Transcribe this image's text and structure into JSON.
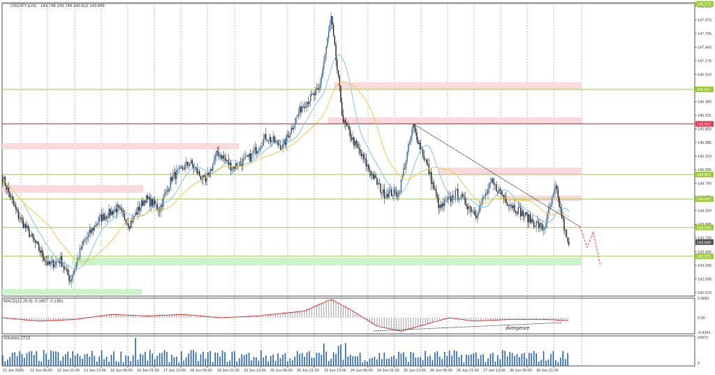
{
  "window": {
    "symbol_line": "USDJPY.a,H1",
    "ohlc": "143.748 143.749 143.622 143.649"
  },
  "colors": {
    "up_candle": "#2f5f8f",
    "down_candle": "#1a1a1a",
    "ma_fast": "#7cc4e8",
    "ma_slow": "#f5c842",
    "green_line": "#9acd32",
    "red_line": "#e3394f",
    "pink_zone": "#fadadd",
    "green_zone": "#c8f5c8",
    "macd_hist": "#a0a0a0",
    "macd_signal": "#e03030",
    "volume_bar": "#1f5fbf",
    "grid": "#888888",
    "forecast": "#ff4d6d"
  },
  "price_axis": {
    "ticks": [
      "148.235",
      "147.970",
      "147.705",
      "147.440",
      "147.175",
      "146.910",
      "146.645",
      "146.380",
      "146.115",
      "145.850",
      "145.585",
      "145.320",
      "145.055",
      "144.790",
      "144.525",
      "144.260",
      "143.995",
      "143.730",
      "143.465",
      "143.200",
      "142.935",
      "142.670"
    ],
    "level_labels": [
      {
        "price": 148.279,
        "text": "148.279",
        "color": "#9acd32"
      },
      {
        "price": 146.617,
        "text": "146.617",
        "color": "#9acd32"
      },
      {
        "price": 145.947,
        "text": "145.947",
        "color": "#e3394f"
      },
      {
        "price": 144.963,
        "text": "144.963",
        "color": "#9acd32"
      },
      {
        "price": 144.487,
        "text": "144.487",
        "color": "#9acd32"
      },
      {
        "price": 143.934,
        "text": "143.934",
        "color": "#9acd32"
      },
      {
        "price": 143.649,
        "text": "143.649",
        "color": "#505050"
      },
      {
        "price": 143.375,
        "text": "143.375",
        "color": "#9acd32"
      }
    ]
  },
  "time_axis": {
    "labels": [
      "11 Jun 2025",
      "12 Jun 05:00",
      "12 Jun 21:00",
      "13 Jun 13:00",
      "16 Jun 05:00",
      "16 Jun 21:00",
      "17 Jun 13:00",
      "18 Jun 05:00",
      "18 Jun 21:00",
      "19 Jun 13:00",
      "20 Jun 05:00",
      "20 Jun 21:00",
      "23 Jun 13:00",
      "24 Jun 05:00",
      "24 Jun 21:00",
      "25 Jun 13:00",
      "26 Jun 05:00",
      "26 Jun 21:00",
      "27 Jun 13:00",
      "30 Jun 05:00",
      "30 Jun 21:00"
    ]
  },
  "macd": {
    "label": "MACD(12,26,9) -0.1657 -0.1391",
    "ticks": [
      "0.5881",
      "0.00",
      "-0.4341"
    ],
    "annotation": "divergence"
  },
  "volumes": {
    "label": "Volumes 2713",
    "ticks": [
      "24972",
      "0"
    ]
  },
  "chart_data": {
    "type": "candlestick",
    "title": "USDJPY.a,H1",
    "ylim": [
      142.6,
      148.3
    ],
    "close_path": [
      [
        0,
        144.9
      ],
      [
        12,
        144.2
      ],
      [
        25,
        143.7
      ],
      [
        38,
        143.2
      ],
      [
        48,
        143.3
      ],
      [
        56,
        142.9
      ],
      [
        66,
        143.6
      ],
      [
        80,
        144.1
      ],
      [
        95,
        144.3
      ],
      [
        105,
        144.0
      ],
      [
        118,
        144.5
      ],
      [
        130,
        144.3
      ],
      [
        140,
        144.9
      ],
      [
        155,
        145.2
      ],
      [
        168,
        144.8
      ],
      [
        178,
        145.4
      ],
      [
        190,
        145.1
      ],
      [
        205,
        145.3
      ],
      [
        218,
        145.7
      ],
      [
        232,
        145.5
      ],
      [
        248,
        146.3
      ],
      [
        262,
        146.6
      ],
      [
        272,
        148.0
      ],
      [
        282,
        146.0
      ],
      [
        293,
        145.5
      ],
      [
        305,
        145.0
      ],
      [
        315,
        144.6
      ],
      [
        328,
        144.6
      ],
      [
        340,
        145.9
      ],
      [
        352,
        145.1
      ],
      [
        362,
        144.3
      ],
      [
        376,
        144.6
      ],
      [
        392,
        144.2
      ],
      [
        405,
        144.8
      ],
      [
        420,
        144.4
      ],
      [
        436,
        144.1
      ],
      [
        448,
        143.9
      ],
      [
        458,
        144.7
      ],
      [
        468,
        143.6
      ]
    ],
    "horizontal_levels": [
      148.279,
      146.617,
      145.947,
      144.963,
      144.487,
      143.934,
      143.375
    ],
    "trendline": {
      "from": [
        340,
        145.95
      ],
      "to": [
        478,
        143.95
      ]
    },
    "forecast_path": [
      [
        478,
        143.95
      ],
      [
        484,
        143.55
      ],
      [
        489,
        143.85
      ],
      [
        495,
        143.2
      ]
    ],
    "macd_signal_path": [
      [
        0,
        0.0
      ],
      [
        30,
        -0.1
      ],
      [
        60,
        -0.05
      ],
      [
        90,
        0.1
      ],
      [
        120,
        0.05
      ],
      [
        150,
        0.1
      ],
      [
        180,
        0.0
      ],
      [
        210,
        0.05
      ],
      [
        250,
        0.2
      ],
      [
        272,
        0.55
      ],
      [
        290,
        0.2
      ],
      [
        310,
        -0.25
      ],
      [
        330,
        -0.4
      ],
      [
        350,
        -0.2
      ],
      [
        370,
        0.0
      ],
      [
        390,
        -0.1
      ],
      [
        420,
        -0.05
      ],
      [
        450,
        -0.05
      ],
      [
        478,
        -0.1
      ]
    ]
  }
}
